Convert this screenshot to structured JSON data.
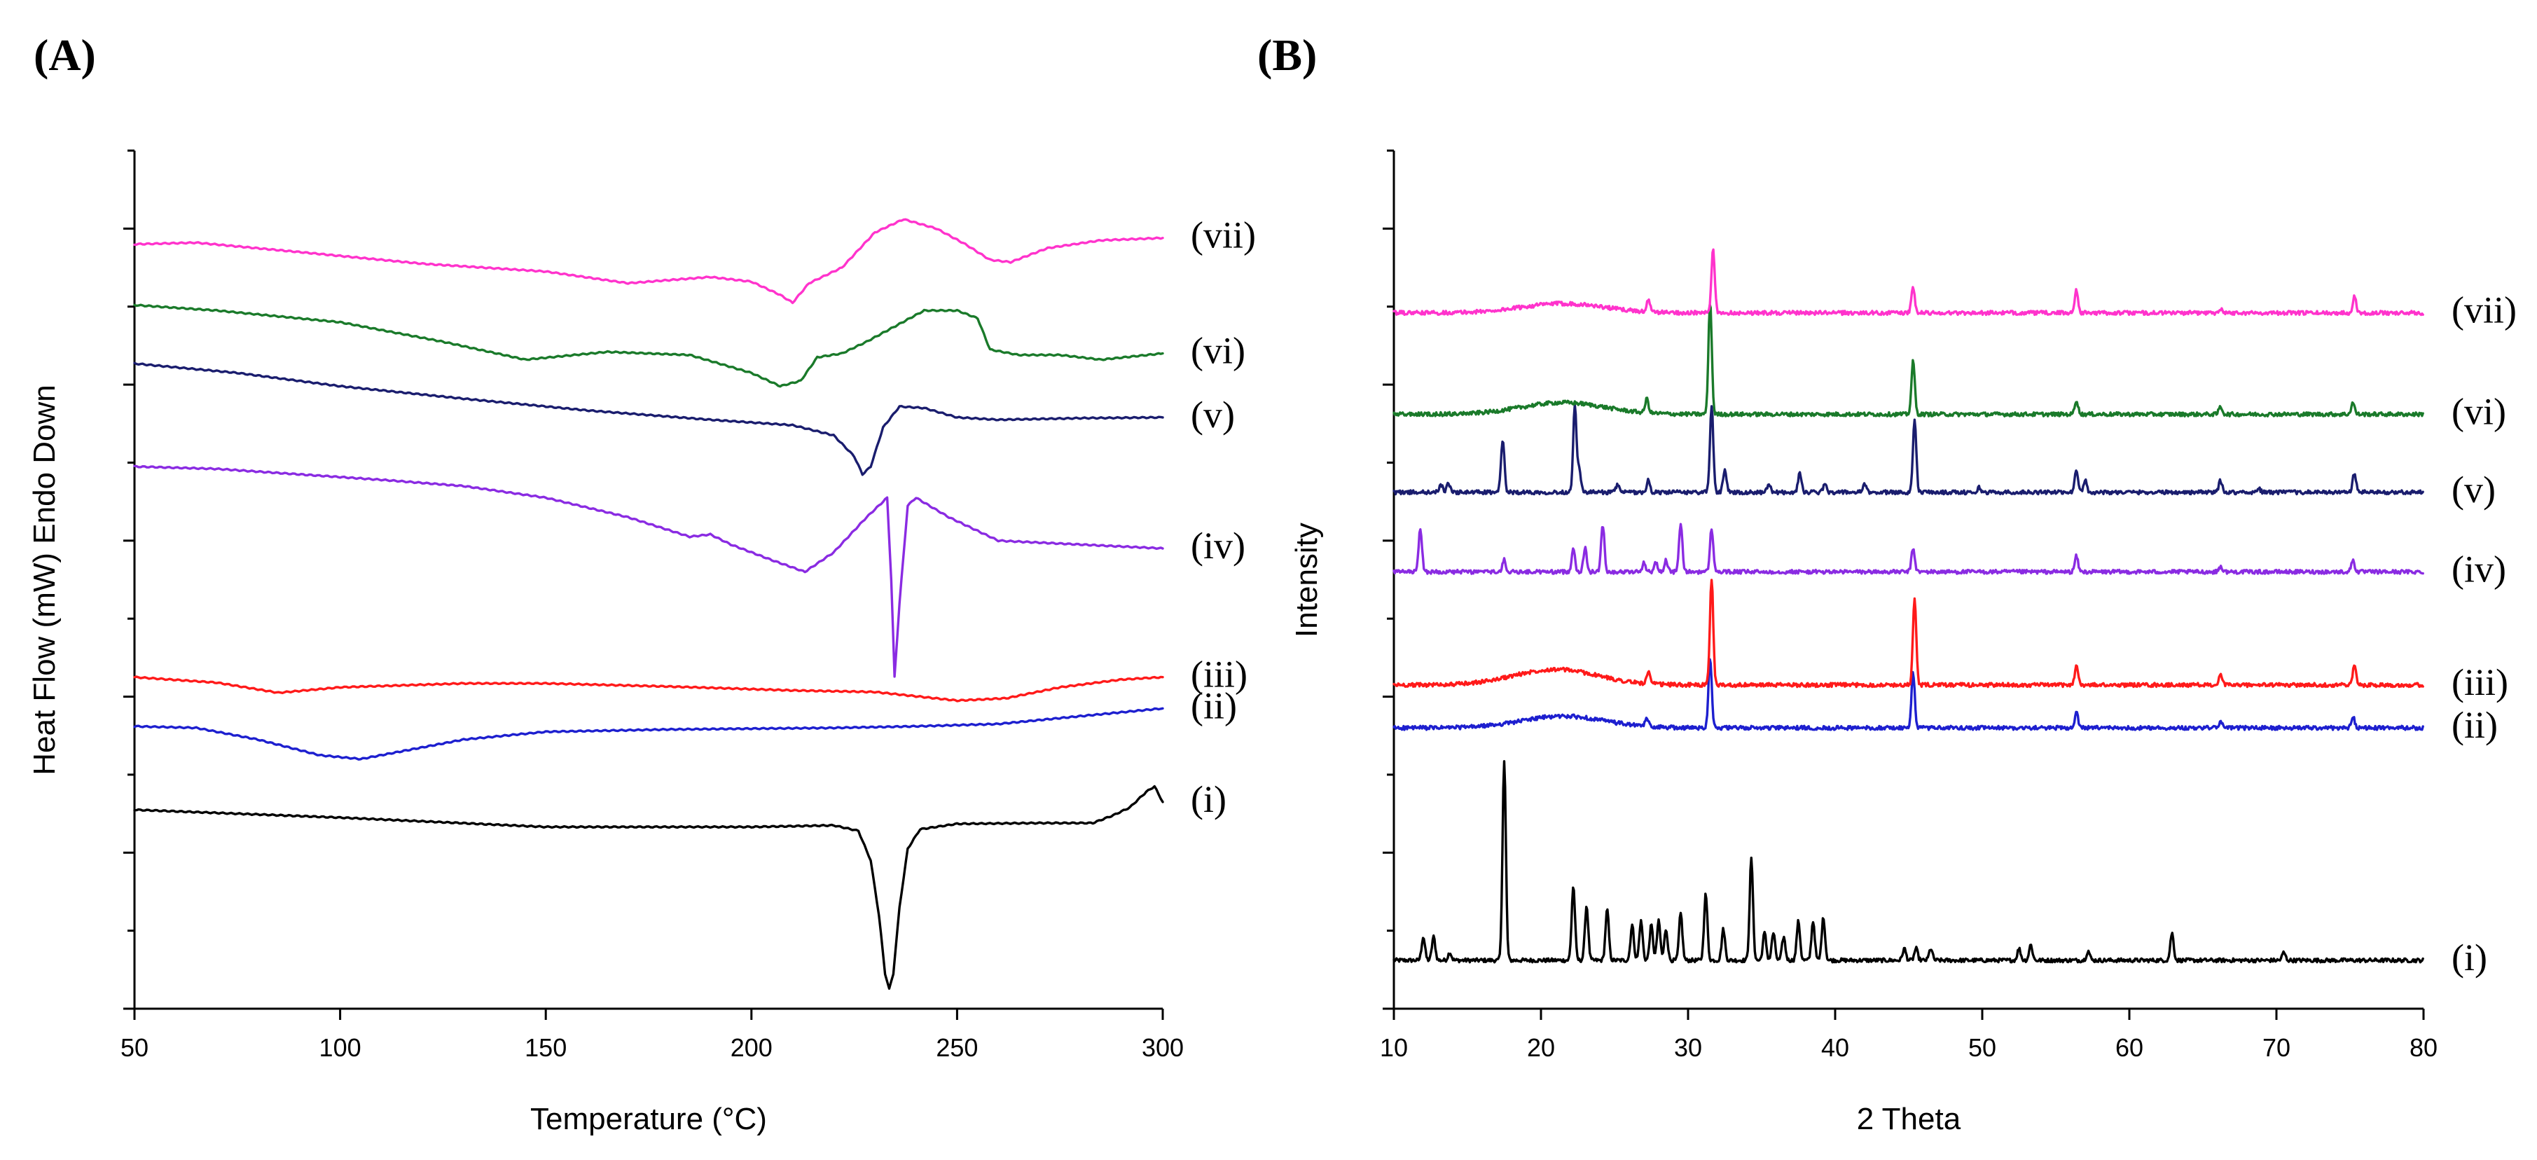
{
  "chart_data": [
    {
      "panel_label": "(A)",
      "type": "line",
      "xlabel": "Temperature (°C)",
      "ylabel": "Heat Flow (mW) Endo Down",
      "xlim": [
        50,
        300
      ],
      "ylim": [
        0,
        11
      ],
      "x_ticks": [
        50,
        100,
        150,
        200,
        250,
        300
      ],
      "y_ticks_labeled": false,
      "grid": false,
      "series": [
        {
          "name": "(i)",
          "color": "#000000",
          "points": [
            [
              50,
              2.55
            ],
            [
              100,
              2.45
            ],
            [
              150,
              2.33
            ],
            [
              200,
              2.33
            ],
            [
              220,
              2.35
            ],
            [
              226,
              2.28
            ],
            [
              229,
              1.9
            ],
            [
              231,
              1.2
            ],
            [
              232.5,
              0.45
            ],
            [
              233.5,
              0.25
            ],
            [
              234.5,
              0.45
            ],
            [
              236,
              1.3
            ],
            [
              238,
              2.05
            ],
            [
              241,
              2.3
            ],
            [
              250,
              2.37
            ],
            [
              270,
              2.38
            ],
            [
              283,
              2.38
            ],
            [
              288,
              2.48
            ],
            [
              292,
              2.58
            ],
            [
              296,
              2.78
            ],
            [
              298,
              2.85
            ],
            [
              300,
              2.65
            ]
          ]
        },
        {
          "name": "(ii)",
          "color": "#1d1fcf",
          "points": [
            [
              50,
              3.62
            ],
            [
              65,
              3.6
            ],
            [
              80,
              3.45
            ],
            [
              95,
              3.25
            ],
            [
              105,
              3.2
            ],
            [
              115,
              3.3
            ],
            [
              130,
              3.45
            ],
            [
              150,
              3.55
            ],
            [
              180,
              3.58
            ],
            [
              220,
              3.6
            ],
            [
              240,
              3.62
            ],
            [
              260,
              3.65
            ],
            [
              280,
              3.75
            ],
            [
              300,
              3.85
            ]
          ]
        },
        {
          "name": "(iii)",
          "color": "#ff1a1a",
          "points": [
            [
              50,
              4.25
            ],
            [
              70,
              4.18
            ],
            [
              85,
              4.05
            ],
            [
              100,
              4.12
            ],
            [
              130,
              4.17
            ],
            [
              150,
              4.17
            ],
            [
              180,
              4.13
            ],
            [
              210,
              4.08
            ],
            [
              230,
              4.06
            ],
            [
              250,
              3.95
            ],
            [
              262,
              3.98
            ],
            [
              275,
              4.12
            ],
            [
              290,
              4.22
            ],
            [
              300,
              4.25
            ]
          ]
        },
        {
          "name": "(iv)",
          "color": "#8a2be2",
          "points": [
            [
              50,
              6.95
            ],
            [
              70,
              6.92
            ],
            [
              90,
              6.85
            ],
            [
              110,
              6.78
            ],
            [
              130,
              6.7
            ],
            [
              150,
              6.55
            ],
            [
              170,
              6.3
            ],
            [
              185,
              6.05
            ],
            [
              190,
              6.08
            ],
            [
              195,
              5.95
            ],
            [
              205,
              5.75
            ],
            [
              213,
              5.6
            ],
            [
              220,
              5.85
            ],
            [
              228,
              6.3
            ],
            [
              233,
              6.55
            ],
            [
              234,
              5.5
            ],
            [
              234.8,
              4.25
            ],
            [
              236,
              5.2
            ],
            [
              238,
              6.45
            ],
            [
              240,
              6.55
            ],
            [
              248,
              6.3
            ],
            [
              260,
              6.0
            ],
            [
              280,
              5.95
            ],
            [
              300,
              5.9
            ]
          ]
        },
        {
          "name": "(v)",
          "color": "#1a1d6e",
          "points": [
            [
              50,
              8.27
            ],
            [
              75,
              8.15
            ],
            [
              100,
              7.98
            ],
            [
              130,
              7.82
            ],
            [
              160,
              7.67
            ],
            [
              190,
              7.55
            ],
            [
              210,
              7.48
            ],
            [
              220,
              7.35
            ],
            [
              225,
              7.08
            ],
            [
              227,
              6.85
            ],
            [
              229,
              6.95
            ],
            [
              232,
              7.45
            ],
            [
              236,
              7.72
            ],
            [
              242,
              7.7
            ],
            [
              250,
              7.58
            ],
            [
              260,
              7.55
            ],
            [
              280,
              7.57
            ],
            [
              300,
              7.58
            ]
          ]
        },
        {
          "name": "(vi)",
          "color": "#1a7a2a",
          "points": [
            [
              50,
              9.02
            ],
            [
              70,
              8.95
            ],
            [
              100,
              8.8
            ],
            [
              125,
              8.55
            ],
            [
              145,
              8.32
            ],
            [
              165,
              8.42
            ],
            [
              185,
              8.38
            ],
            [
              200,
              8.15
            ],
            [
              207,
              7.98
            ],
            [
              212,
              8.05
            ],
            [
              216,
              8.35
            ],
            [
              222,
              8.4
            ],
            [
              228,
              8.55
            ],
            [
              235,
              8.75
            ],
            [
              242,
              8.95
            ],
            [
              250,
              8.95
            ],
            [
              255,
              8.85
            ],
            [
              258,
              8.45
            ],
            [
              265,
              8.38
            ],
            [
              275,
              8.38
            ],
            [
              285,
              8.32
            ],
            [
              300,
              8.4
            ]
          ]
        },
        {
          "name": "(vii)",
          "color": "#ff33cc",
          "points": [
            [
              50,
              9.8
            ],
            [
              65,
              9.82
            ],
            [
              90,
              9.7
            ],
            [
              120,
              9.55
            ],
            [
              150,
              9.45
            ],
            [
              170,
              9.3
            ],
            [
              190,
              9.38
            ],
            [
              200,
              9.32
            ],
            [
              207,
              9.15
            ],
            [
              210,
              9.05
            ],
            [
              214,
              9.3
            ],
            [
              222,
              9.5
            ],
            [
              230,
              9.95
            ],
            [
              237,
              10.12
            ],
            [
              245,
              10.0
            ],
            [
              252,
              9.8
            ],
            [
              258,
              9.6
            ],
            [
              263,
              9.57
            ],
            [
              272,
              9.75
            ],
            [
              285,
              9.85
            ],
            [
              300,
              9.88
            ]
          ]
        }
      ],
      "annotations": [
        "(i)",
        "(ii)",
        "(iii)",
        "(iv)",
        "(v)",
        "(vi)",
        "(vii)"
      ]
    },
    {
      "panel_label": "(B)",
      "type": "line",
      "xlabel": "2 Theta",
      "ylabel": "Intensity",
      "xlim": [
        10,
        80
      ],
      "ylim": [
        0,
        11
      ],
      "x_ticks": [
        10,
        20,
        30,
        40,
        50,
        60,
        70,
        80
      ],
      "y_ticks_labeled": false,
      "grid": false,
      "series": [
        {
          "name": "(i)",
          "color": "#000000",
          "baseline": 0.62,
          "halo": [],
          "peaks": [
            [
              12.0,
              0.3
            ],
            [
              12.7,
              0.3
            ],
            [
              13.8,
              0.1
            ],
            [
              17.5,
              2.55
            ],
            [
              22.2,
              0.95
            ],
            [
              23.1,
              0.7
            ],
            [
              24.5,
              0.65
            ],
            [
              26.2,
              0.45
            ],
            [
              26.8,
              0.5
            ],
            [
              27.5,
              0.45
            ],
            [
              28.0,
              0.5
            ],
            [
              28.5,
              0.4
            ],
            [
              29.5,
              0.6
            ],
            [
              31.2,
              0.85
            ],
            [
              32.4,
              0.4
            ],
            [
              34.3,
              1.3
            ],
            [
              35.2,
              0.35
            ],
            [
              35.8,
              0.35
            ],
            [
              36.5,
              0.3
            ],
            [
              37.5,
              0.5
            ],
            [
              38.5,
              0.5
            ],
            [
              39.2,
              0.55
            ],
            [
              44.7,
              0.15
            ],
            [
              45.5,
              0.15
            ],
            [
              46.5,
              0.15
            ],
            [
              52.5,
              0.15
            ],
            [
              53.3,
              0.2
            ],
            [
              57.2,
              0.12
            ],
            [
              62.9,
              0.35
            ],
            [
              70.5,
              0.1
            ]
          ]
        },
        {
          "name": "(ii)",
          "color": "#1d1fcf",
          "baseline": 3.6,
          "halo": [
            21.5,
            0.15,
            4.0
          ],
          "peaks": [
            [
              27.2,
              0.1
            ],
            [
              31.5,
              0.9
            ],
            [
              45.3,
              0.7
            ],
            [
              56.4,
              0.2
            ],
            [
              66.2,
              0.08
            ],
            [
              75.2,
              0.15
            ]
          ]
        },
        {
          "name": "(iii)",
          "color": "#ff1a1a",
          "baseline": 4.15,
          "halo": [
            21.0,
            0.2,
            4.0
          ],
          "peaks": [
            [
              27.3,
              0.15
            ],
            [
              31.6,
              1.35
            ],
            [
              45.4,
              1.1
            ],
            [
              56.4,
              0.25
            ],
            [
              66.2,
              0.12
            ],
            [
              75.3,
              0.25
            ]
          ]
        },
        {
          "name": "(iv)",
          "color": "#8a2be2",
          "baseline": 5.6,
          "halo": [],
          "peaks": [
            [
              11.8,
              0.55
            ],
            [
              17.5,
              0.15
            ],
            [
              22.2,
              0.3
            ],
            [
              23.0,
              0.3
            ],
            [
              24.2,
              0.6
            ],
            [
              27.0,
              0.12
            ],
            [
              27.8,
              0.12
            ],
            [
              28.5,
              0.15
            ],
            [
              29.5,
              0.62
            ],
            [
              31.6,
              0.55
            ],
            [
              45.3,
              0.3
            ],
            [
              56.4,
              0.2
            ],
            [
              66.2,
              0.07
            ],
            [
              75.2,
              0.15
            ]
          ]
        },
        {
          "name": "(v)",
          "color": "#1a1d6e",
          "baseline": 6.62,
          "halo": [],
          "peaks": [
            [
              13.2,
              0.1
            ],
            [
              13.7,
              0.12
            ],
            [
              17.4,
              0.68
            ],
            [
              22.3,
              1.1
            ],
            [
              22.6,
              0.3
            ],
            [
              25.2,
              0.1
            ],
            [
              27.3,
              0.15
            ],
            [
              31.6,
              1.1
            ],
            [
              32.5,
              0.3
            ],
            [
              35.5,
              0.1
            ],
            [
              37.6,
              0.25
            ],
            [
              39.3,
              0.1
            ],
            [
              42.0,
              0.1
            ],
            [
              45.4,
              0.93
            ],
            [
              49.8,
              0.06
            ],
            [
              56.4,
              0.3
            ],
            [
              57.0,
              0.15
            ],
            [
              66.2,
              0.15
            ],
            [
              68.8,
              0.05
            ],
            [
              75.3,
              0.25
            ]
          ]
        },
        {
          "name": "(vi)",
          "color": "#1a7a2a",
          "baseline": 7.62,
          "halo": [
            21.5,
            0.15,
            4.0
          ],
          "peaks": [
            [
              27.2,
              0.18
            ],
            [
              31.5,
              1.45
            ],
            [
              45.3,
              0.68
            ],
            [
              56.4,
              0.18
            ],
            [
              66.2,
              0.1
            ],
            [
              75.2,
              0.15
            ]
          ]
        },
        {
          "name": "(vii)",
          "color": "#ff33cc",
          "baseline": 8.92,
          "halo": [
            21.5,
            0.12,
            4.0
          ],
          "peaks": [
            [
              27.3,
              0.15
            ],
            [
              31.7,
              0.8
            ],
            [
              45.3,
              0.32
            ],
            [
              56.4,
              0.3
            ],
            [
              66.2,
              0.06
            ],
            [
              75.3,
              0.22
            ]
          ]
        }
      ],
      "annotations": [
        "(i)",
        "(ii)",
        "(iii)",
        "(iv)",
        "(v)",
        "(vi)",
        "(vii)"
      ]
    }
  ]
}
